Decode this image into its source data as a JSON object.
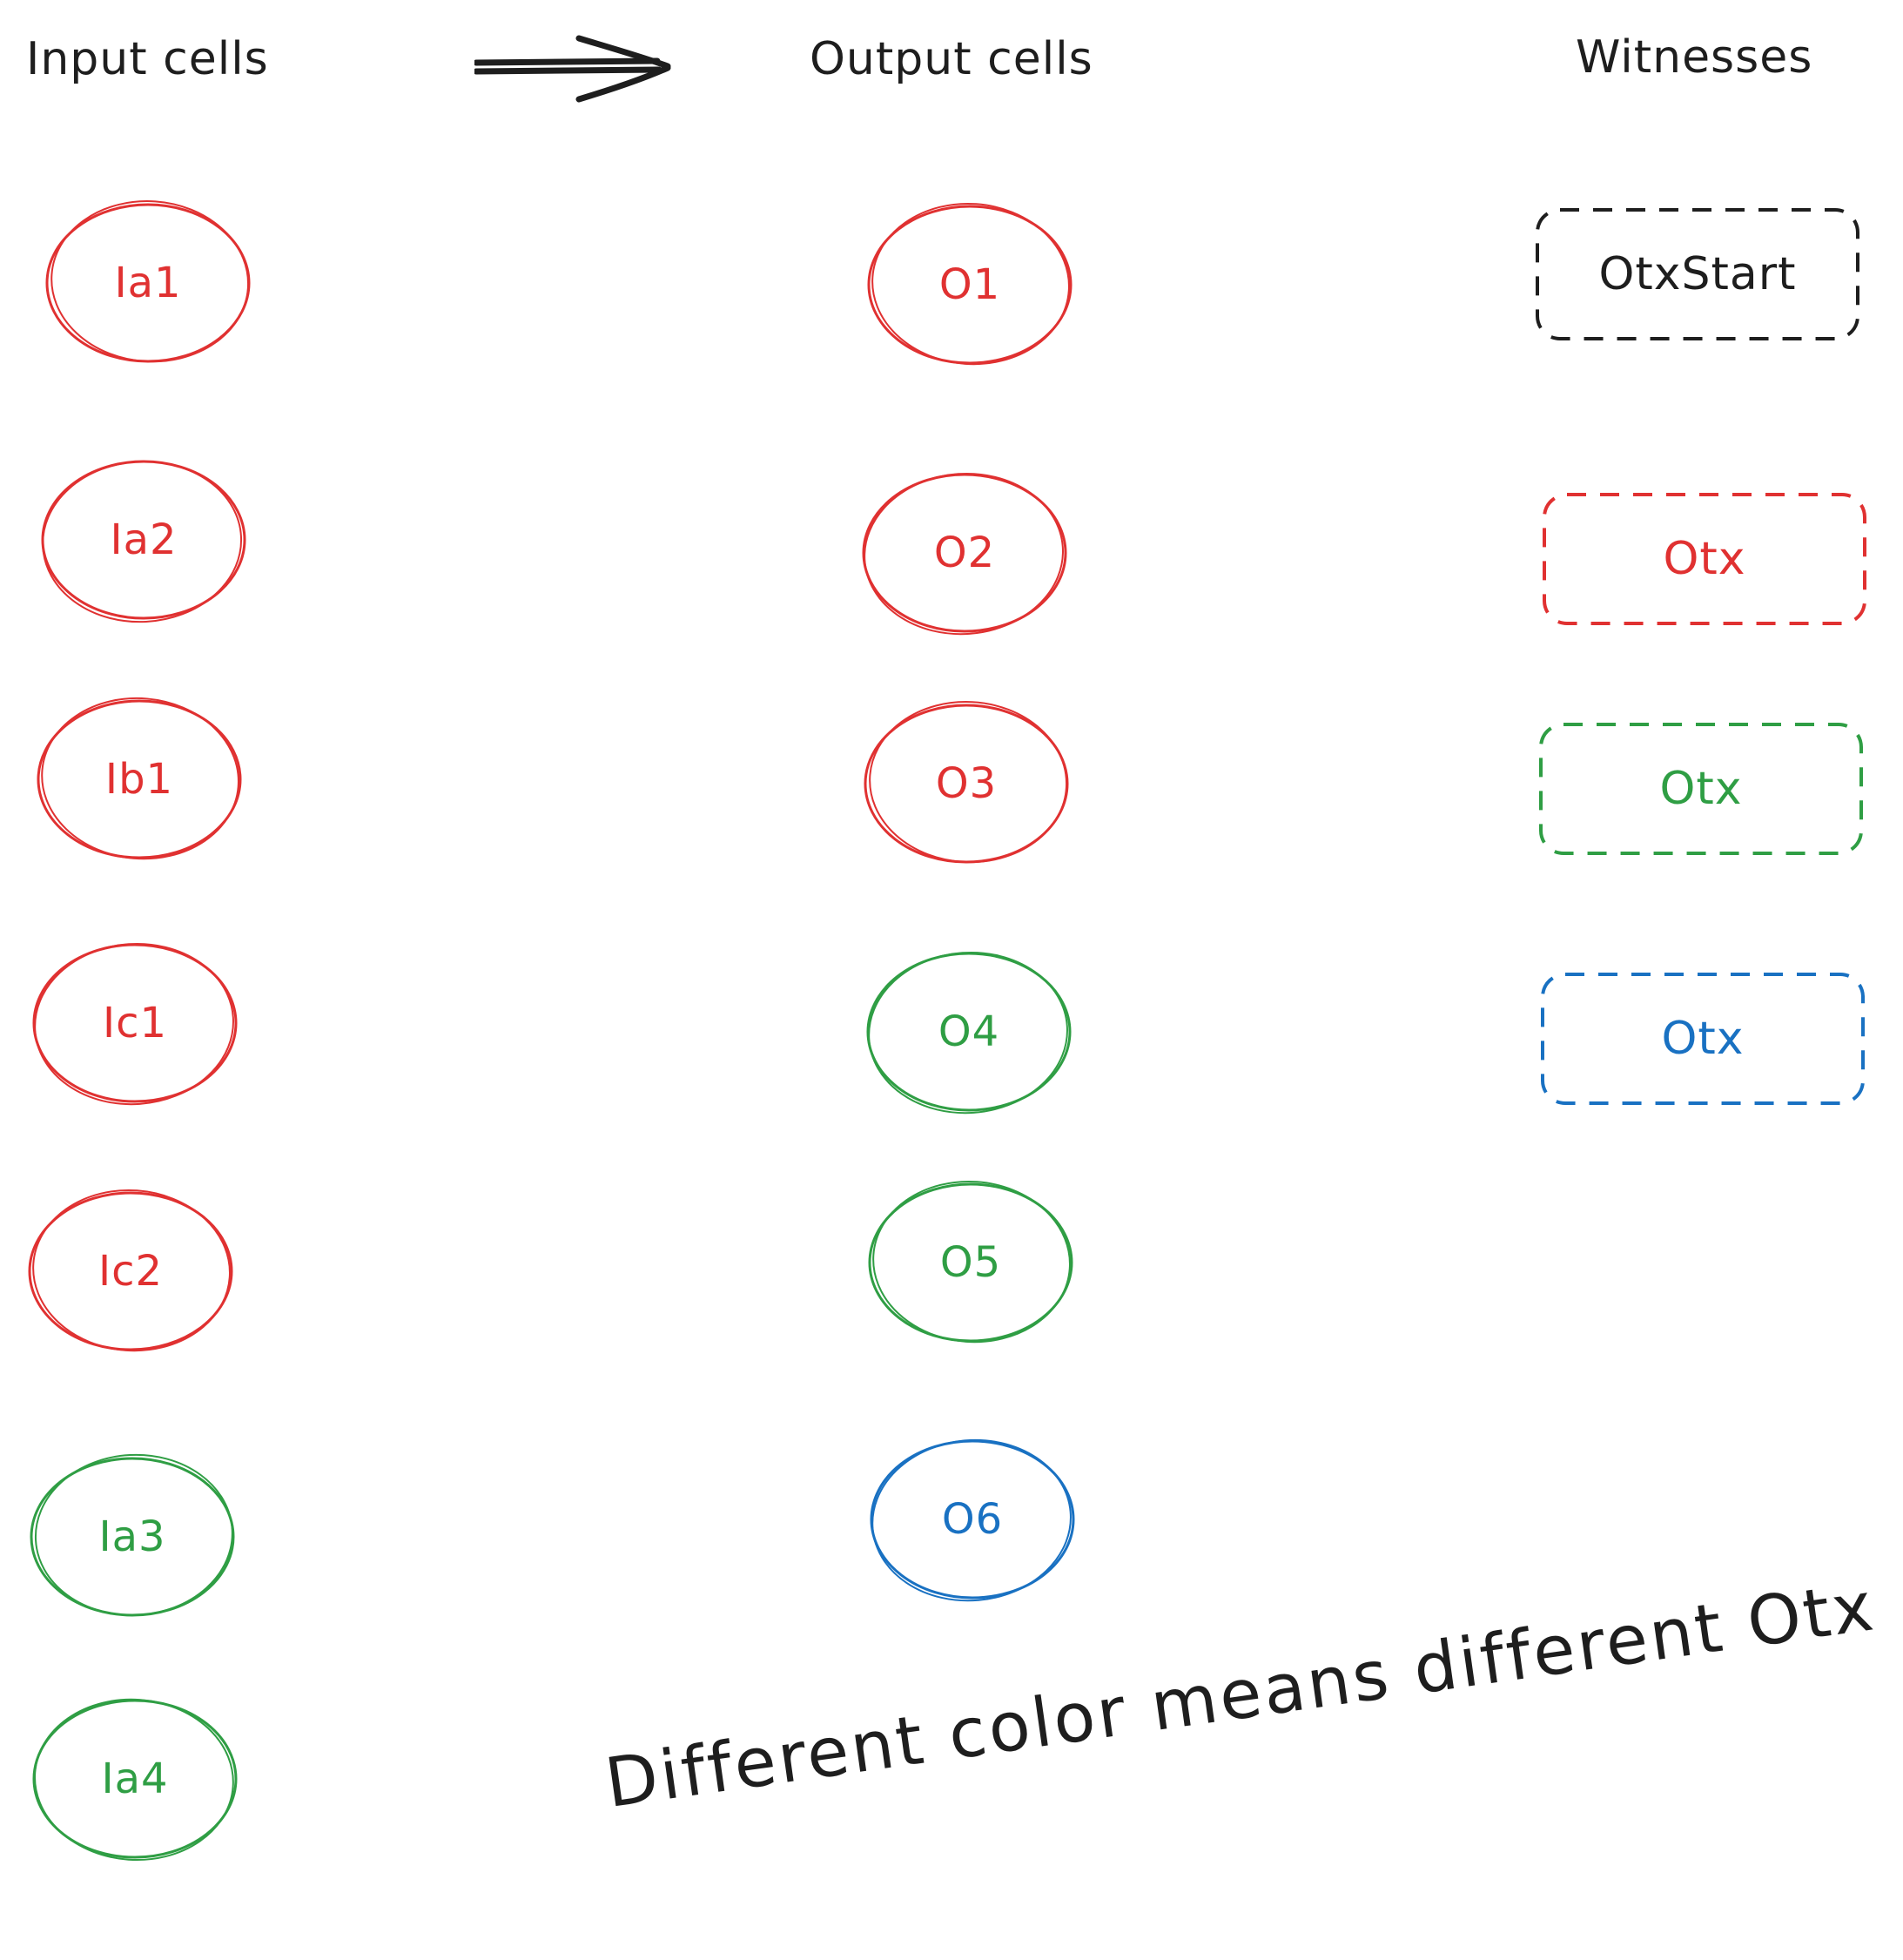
{
  "palette": {
    "ink": "#1e1e1e",
    "red": "#e03131",
    "green": "#2f9e44",
    "blue": "#1971c2"
  },
  "headers": {
    "inputs": "Input cells",
    "outputs": "Output cells",
    "witnesses": "Witnesses"
  },
  "arrow_icon": "double-arrow-right-icon",
  "input_cells": [
    {
      "label": "Ia1",
      "color": "red"
    },
    {
      "label": "Ia2",
      "color": "red"
    },
    {
      "label": "Ib1",
      "color": "red"
    },
    {
      "label": "Ic1",
      "color": "red"
    },
    {
      "label": "Ic2",
      "color": "red"
    },
    {
      "label": "Ia3",
      "color": "green"
    },
    {
      "label": "Ia4",
      "color": "green"
    }
  ],
  "output_cells": [
    {
      "label": "O1",
      "color": "red"
    },
    {
      "label": "O2",
      "color": "red"
    },
    {
      "label": "O3",
      "color": "red"
    },
    {
      "label": "O4",
      "color": "green"
    },
    {
      "label": "O5",
      "color": "green"
    },
    {
      "label": "O6",
      "color": "blue"
    }
  ],
  "witnesses": [
    {
      "label": "OtxStart",
      "color": "ink"
    },
    {
      "label": "Otx",
      "color": "red"
    },
    {
      "label": "Otx",
      "color": "green"
    },
    {
      "label": "Otx",
      "color": "blue"
    }
  ],
  "note": "Different color means different Otx"
}
